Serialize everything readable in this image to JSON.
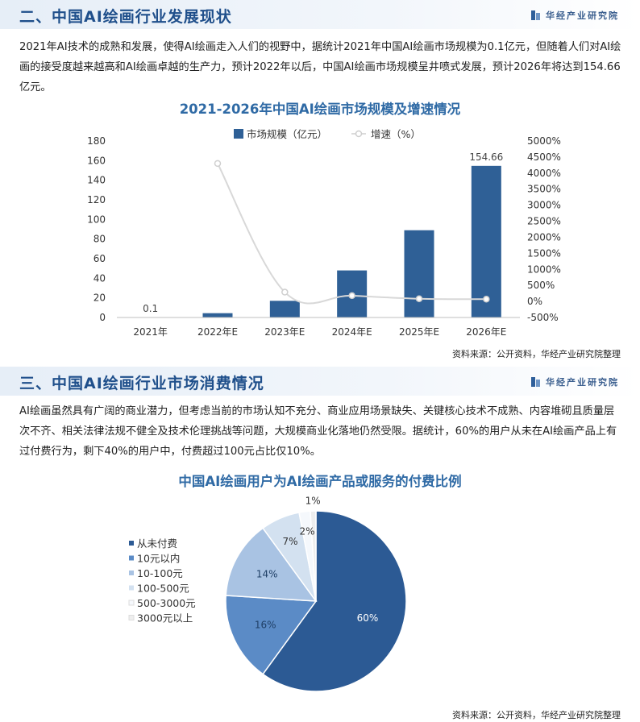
{
  "brand": "华经产业研究院",
  "section1": {
    "title": "二、中国AI绘画行业发展现状",
    "paragraph": "2021年AI技术的成熟和发展，使得AI绘画走入人们的视野中，据统计2021年中国AI绘画市场规模为0.1亿元，但随着人们对AI绘画的接受度越来越高和AI绘画卓越的生产力，预计2022年以后，中国AI绘画市场规模呈井喷式发展，预计2026年将达到154.66亿元。"
  },
  "section2": {
    "title": "三、中国AI绘画行业市场消费情况",
    "paragraph": "AI绘画虽然具有广阔的商业潜力，但考虑当前的市场认知不充分、商业应用场景缺失、关键核心技术不成熟、内容堆砌且质量层次不齐、相关法律法规不健全及技术伦理挑战等问题，大规模商业化落地仍然受限。据统计，60%的用户从未在AI绘画产品上有过付费行为，剩下40%的用户中，付费超过100元占比仅10%。"
  },
  "source_text": "资料来源：公开资料，华经产业研究院整理",
  "chart_data": [
    {
      "type": "bar",
      "title": "2021-2026年中国AI绘画市场规模及增速情况",
      "categories": [
        "2021年",
        "2022年E",
        "2023年E",
        "2024年E",
        "2025年E",
        "2026年E"
      ],
      "series": [
        {
          "name": "市场规模（亿元）",
          "type": "bar",
          "axis": "left",
          "values": [
            0.1,
            4.4,
            17,
            48,
            89,
            154.66
          ],
          "color": "#2f6096"
        },
        {
          "name": "增速（%）",
          "type": "line",
          "axis": "right",
          "values": [
            null,
            4300,
            290,
            180,
            85,
            70
          ],
          "color": "#d4d4d4"
        }
      ],
      "data_labels": {
        "0": "0.1",
        "5": "154.66"
      },
      "y_left": {
        "min": 0,
        "max": 180,
        "ticks": [
          "0",
          "20",
          "40",
          "60",
          "80",
          "100",
          "120",
          "140",
          "160",
          "180"
        ]
      },
      "y_right": {
        "min": -500,
        "max": 5000,
        "ticks": [
          "-500%",
          "0%",
          "500%",
          "1000%",
          "1500%",
          "2000%",
          "2500%",
          "3000%",
          "3500%",
          "4000%",
          "4500%",
          "5000%"
        ]
      },
      "legend_position": "top"
    },
    {
      "type": "pie",
      "title": "中国AI绘画用户为AI绘画产品或服务的付费比例",
      "slices": [
        {
          "label": "从未付费",
          "value": 60,
          "text": "60%",
          "color": "#2c5a94"
        },
        {
          "label": "10元以内",
          "value": 16,
          "text": "16%",
          "color": "#5b8bc6"
        },
        {
          "label": "10-100元",
          "value": 14,
          "text": "14%",
          "color": "#a9c3e3"
        },
        {
          "label": "100-500元",
          "value": 7,
          "text": "7%",
          "color": "#d3e1f0"
        },
        {
          "label": "500-3000元",
          "value": 2,
          "text": "2%",
          "color": "#f5f8fc"
        },
        {
          "label": "3000元以上",
          "value": 1,
          "text": "1%",
          "color": "#eeeeee"
        }
      ],
      "legend_position": "left"
    }
  ]
}
